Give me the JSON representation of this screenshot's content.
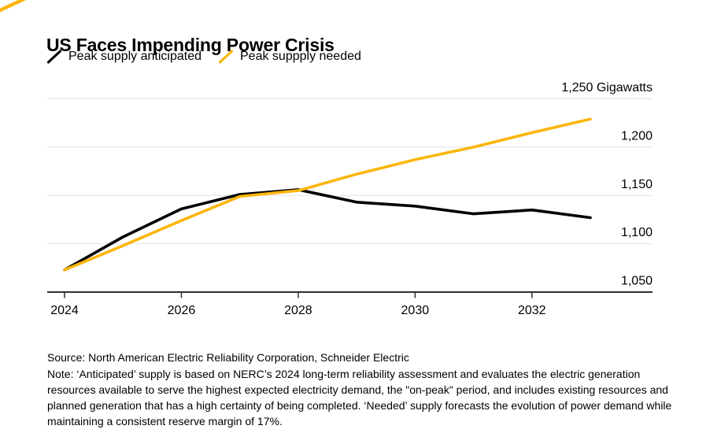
{
  "header": {
    "title": "US Faces Impending Power Crisis",
    "legend": [
      {
        "label": "Peak supply anticipated",
        "color": "#000000"
      },
      {
        "label": "Peak suppply needed",
        "color": "#FBB60C"
      }
    ]
  },
  "chart_data": {
    "type": "line",
    "title": "US Faces Impending Power Crisis",
    "ylabel": "Gigawatts",
    "x": [
      2024,
      2025,
      2026,
      2027,
      2028,
      2029,
      2030,
      2031,
      2032,
      2033
    ],
    "series": [
      {
        "name": "Peak supply anticipated",
        "color": "#000000",
        "values": [
          1073,
          1107,
          1136,
          1151,
          1156,
          1143,
          1139,
          1131,
          1135,
          1127
        ]
      },
      {
        "name": "Peak suppply needed",
        "color": "#FBB60C",
        "values": [
          1073,
          1098,
          1124,
          1149,
          1155,
          1172,
          1187,
          1200,
          1215,
          1229
        ]
      }
    ],
    "xlim": [
      2024,
      2033
    ],
    "ylim": [
      1050,
      1250
    ],
    "grid": true,
    "legend_position": "top-left",
    "y_ticks": [
      1050,
      1100,
      1150,
      1200,
      1250
    ],
    "y_tick_labels": [
      "1,050",
      "1,100",
      "1,150",
      "1,200",
      "1,250 Gigawatts"
    ],
    "x_ticks": [
      2024,
      2026,
      2028,
      2030,
      2032
    ],
    "x_tick_labels": [
      "2024",
      "2026",
      "2028",
      "2030",
      "2032"
    ]
  },
  "footer": {
    "source": "Source: North American Electric Reliability Corporation, Schneider Electric",
    "note": "Note: ‘Anticipated’ supply is based on NERC’s 2024 long-term reliability assessment and evaluates the electric generation resources available to serve the highest expected electricity demand, the \"on-peak\" period, and includes existing resources and planned generation that has a high certainty of being completed. ‘Needed’ supply forecasts the evolution of power demand while maintaining a consistent reserve margin of 17%."
  },
  "colors": {
    "accent_yellow": "#FBB60C",
    "line_black": "#000000",
    "gridline": "#E2E2E2",
    "axis": "#2E2E2E",
    "background": "#FFFFFF",
    "text": "#000000"
  }
}
